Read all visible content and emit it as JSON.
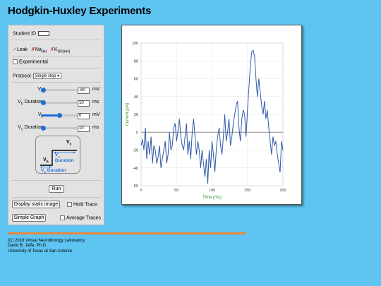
{
  "title": "Hodgkin-Huxley Experiments",
  "panel": {
    "student_id_label": "Student ID",
    "channels": {
      "leak": {
        "mark": "✓",
        "label": "Leak"
      },
      "na": {
        "mark": "✗",
        "label": "Na",
        "sub": "HH"
      },
      "k": {
        "mark": "✗",
        "label": "K",
        "sub": "DR(HH)"
      }
    },
    "experimental_label": "Experimental",
    "protocol_label": "Protocol",
    "protocol_value": "Single step",
    "params": [
      {
        "label": "V",
        "sub": "h",
        "suffix": "",
        "value": "-80",
        "unit": "mV",
        "level": 0.05
      },
      {
        "label": "V",
        "sub": "h",
        "suffix": " Duration",
        "value": "10",
        "unit": "ms",
        "level": 0.05
      },
      {
        "label": "V",
        "sub": "c",
        "suffix": "",
        "value": "0",
        "unit": "mV",
        "level": 0.5
      },
      {
        "label": "V",
        "sub": "c",
        "suffix": " Duration",
        "value": "10",
        "unit": "ms",
        "level": 0.05
      }
    ],
    "diagram": {
      "vc": "V",
      "vc_sub": "c",
      "vc_dur": "V",
      "vc_dur_sub": "c",
      "vc_dur_text": " Duration",
      "vh": "V",
      "vh_sub": "h",
      "vh_dur": "V",
      "vh_dur_sub": "h",
      "vh_dur_text": " Duration"
    },
    "run_label": "Run",
    "display_static_label": "Display static image",
    "hold_trace_label": "Hold Trace",
    "simple_graph_label": "Simple Graph",
    "average_traces_label": "Average Traces"
  },
  "colors": {
    "accent": "#1e6fd9",
    "trace": "#2f5aa8",
    "xlabel": "#2e8b2e",
    "footer_rule": "#e8883a"
  },
  "chart_data": {
    "type": "line",
    "xlabel": "Time (ms)",
    "ylabel": "Current (pA)",
    "xlim": [
      0,
      200
    ],
    "ylim": [
      -60,
      100
    ],
    "xticks": [
      0,
      50,
      100,
      150,
      200
    ],
    "yticks": [
      -60,
      -40,
      -20,
      0,
      20,
      40,
      60,
      80,
      100
    ],
    "grid": true,
    "series": [
      {
        "x": [
          0,
          2,
          4,
          6,
          8,
          10,
          12,
          14,
          16,
          18,
          20,
          22,
          24,
          26,
          28,
          30,
          32,
          34,
          36,
          38,
          40,
          42,
          44,
          46,
          48,
          50,
          52,
          54,
          56,
          58,
          60,
          62,
          64,
          66,
          68,
          70,
          72,
          74,
          76,
          78,
          80,
          82,
          84,
          86,
          88,
          90,
          92,
          94,
          96,
          98,
          100,
          102,
          104,
          106,
          108,
          110,
          112,
          114,
          116,
          118,
          120,
          122,
          124,
          126,
          128,
          130,
          132,
          134,
          136,
          138,
          140,
          142,
          144,
          146,
          148,
          150,
          152,
          154,
          156,
          158,
          160,
          162,
          164,
          166,
          168,
          170,
          172,
          174,
          176,
          178,
          180,
          182,
          184,
          186,
          188,
          190,
          192,
          194,
          196,
          198,
          200
        ],
        "values": [
          -15,
          -8,
          -20,
          5,
          -30,
          -10,
          -25,
          -5,
          -35,
          -15,
          -20,
          -35,
          -28,
          -15,
          -40,
          -30,
          -20,
          -10,
          -35,
          -25,
          0,
          -20,
          -15,
          5,
          10,
          -10,
          2,
          15,
          -5,
          -15,
          -20,
          -5,
          10,
          -25,
          -10,
          -30,
          0,
          15,
          -5,
          -25,
          -10,
          -20,
          -40,
          -20,
          -35,
          -50,
          -30,
          -58,
          -20,
          -40,
          -10,
          -25,
          -45,
          -20,
          -5,
          5,
          -15,
          -25,
          -5,
          20,
          -10,
          0,
          15,
          -15,
          -5,
          10,
          20,
          30,
          35,
          5,
          -10,
          15,
          25,
          20,
          -5,
          25,
          50,
          75,
          90,
          92,
          85,
          60,
          40,
          60,
          45,
          30,
          20,
          35,
          15,
          25,
          5,
          -10,
          -25,
          -5,
          -15,
          -10,
          -25,
          -35,
          -45,
          -10,
          -20
        ]
      }
    ]
  },
  "footer": [
    "(C) 2016 Virtual Neurobiology Laboratory",
    "David B. Jaffe, Ph.D.",
    "University of Texas at San Antonio"
  ]
}
